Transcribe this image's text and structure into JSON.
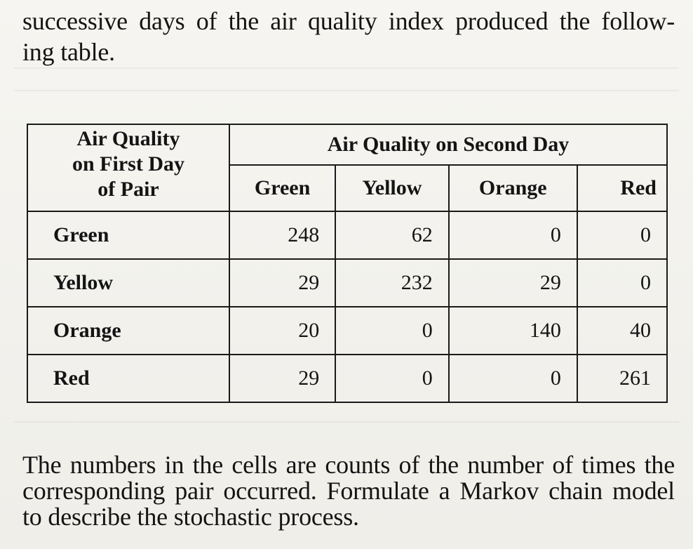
{
  "intro_lines": [
    "successive days of the air quality index produced the follow-",
    "ing table."
  ],
  "table": {
    "corner_lines": [
      "Air Quality",
      "on First Day",
      "of Pair"
    ],
    "spanning_header": "Air Quality on Second Day",
    "columns": [
      "Green",
      "Yellow",
      "Orange",
      "Red"
    ],
    "rows": [
      {
        "label": "Green",
        "values": [
          "248",
          "62",
          "0",
          "0"
        ]
      },
      {
        "label": "Yellow",
        "values": [
          "29",
          "232",
          "29",
          "0"
        ]
      },
      {
        "label": "Orange",
        "values": [
          "20",
          "0",
          "140",
          "40"
        ]
      },
      {
        "label": "Red",
        "values": [
          "29",
          "0",
          "0",
          "261"
        ]
      }
    ]
  },
  "outro_lines": [
    "The numbers in the cells are counts of the number of times the",
    "corresponding pair occurred. Formulate a Markov chain model",
    "to describe the stochastic process."
  ]
}
